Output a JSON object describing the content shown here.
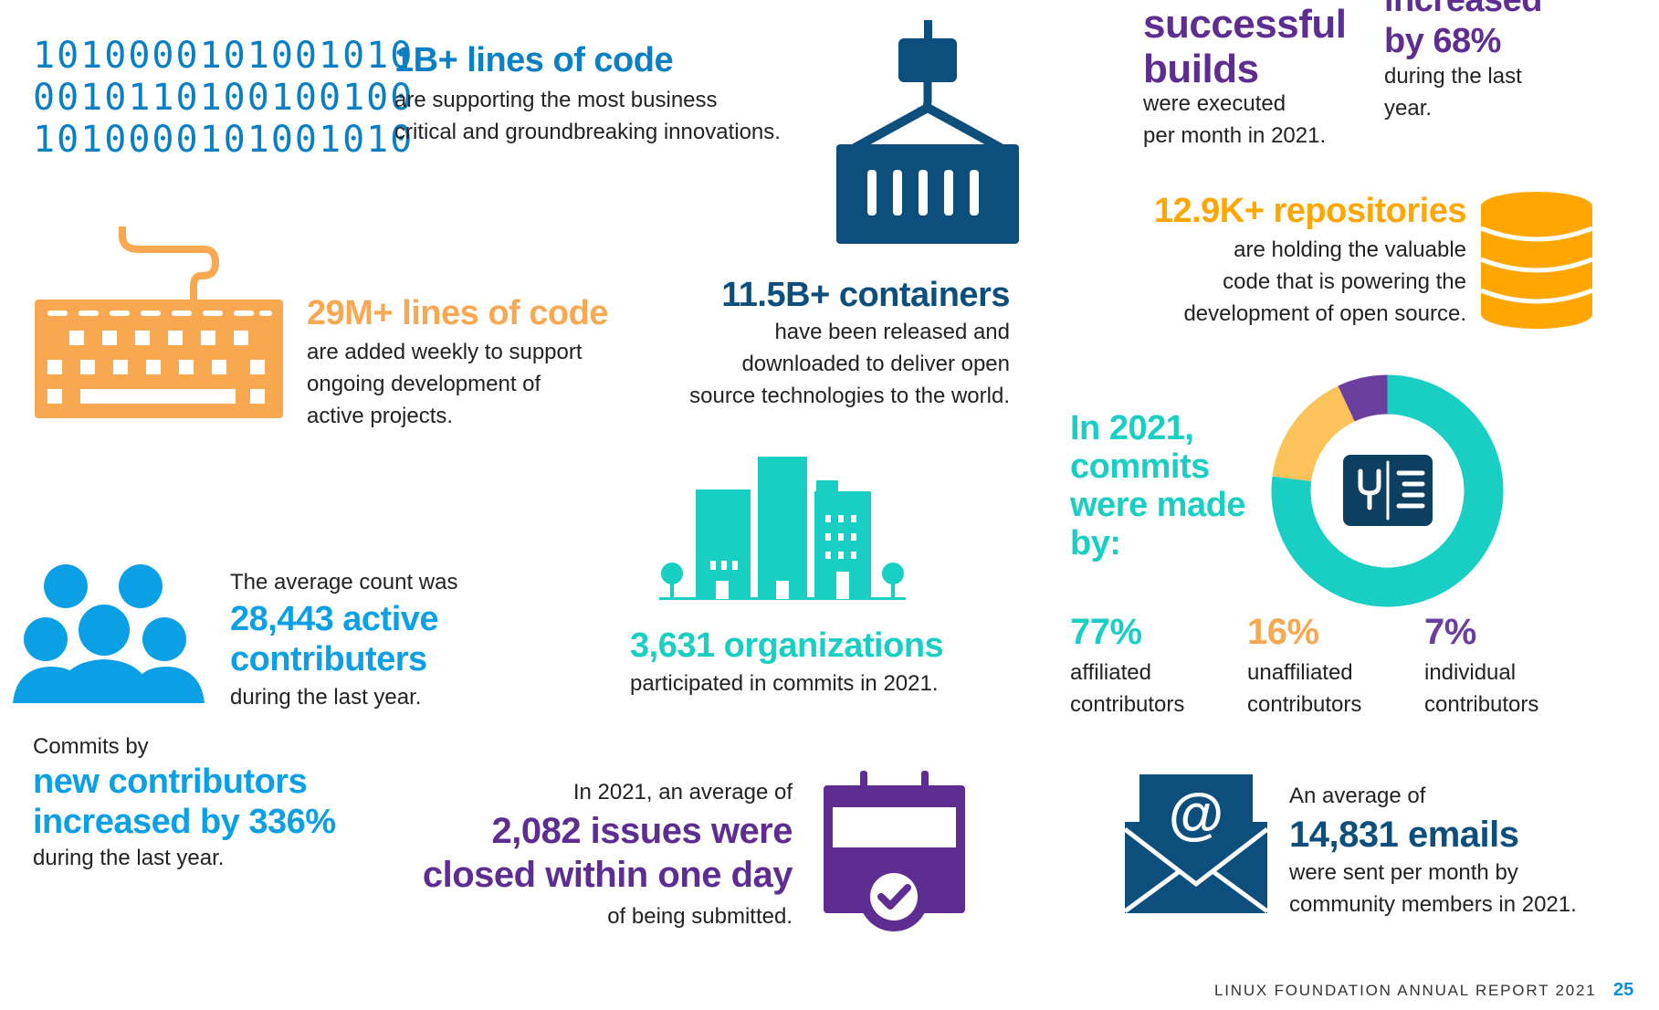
{
  "binary_rows": [
    "1010000101001010",
    "0010110100100100",
    "1010000101001010"
  ],
  "lines_of_code": {
    "headline": "1B+ lines of code",
    "line1": "are supporting the most business",
    "line2": "critical and groundbreaking innovations."
  },
  "weekly_code": {
    "headline": "29M+ lines of code",
    "line1": "are added weekly to support",
    "line2": "ongoing development of",
    "line3": "active projects."
  },
  "containers": {
    "headline": "11.5B+ containers",
    "line1": "have been released and",
    "line2": "downloaded to deliver open",
    "line3": "source technologies to the world."
  },
  "builds": {
    "headline1": "successful",
    "headline2": "builds",
    "line1": "were executed",
    "line2": "per month in 2021."
  },
  "increase": {
    "headline1": "increased",
    "headline2": "by 68%",
    "line1": "during the last",
    "line2": "year."
  },
  "repositories": {
    "headline": "12.9K+ repositories",
    "line1": "are holding the valuable",
    "line2": "code that is powering the",
    "line3": "development of open source."
  },
  "commits_by": {
    "line1": "In 2021,",
    "line2": "commits",
    "line3": "were made",
    "line4": "by:"
  },
  "breakdown": [
    {
      "pct": "77%",
      "line1": "affiliated",
      "line2": "contributors",
      "color": "#19cfc4"
    },
    {
      "pct": "16%",
      "line1": "unaffiliated",
      "line2": "contributors",
      "color": "#f9a852"
    },
    {
      "pct": "7%",
      "line1": "individual",
      "line2": "contributors",
      "color": "#6b3fa0"
    }
  ],
  "chart_data": {
    "type": "pie",
    "categories": [
      "affiliated contributors",
      "unaffiliated contributors",
      "individual contributors"
    ],
    "values": [
      77,
      16,
      7
    ],
    "colors": [
      "#19cfc4",
      "#fcc35a",
      "#6b3fa0"
    ]
  },
  "contributors": {
    "intro": "The average count was",
    "headline1": "28,443 active",
    "headline2": "contributers",
    "outro": "during the last year."
  },
  "organizations": {
    "headline": "3,631 organizations",
    "line1": "participated in commits in 2021."
  },
  "new_contributors": {
    "intro": "Commits by",
    "headline1": "new contributors",
    "headline2": "increased by 336%",
    "outro": "during the last year."
  },
  "issues": {
    "intro": "In 2021, an average of",
    "headline1": "2,082 issues were",
    "headline2": "closed within one day",
    "outro": "of being submitted."
  },
  "emails": {
    "intro": "An average of",
    "headline": "14,831 emails",
    "line1": "were sent per month by",
    "line2": "community members in 2021."
  },
  "footer": {
    "report": "LINUX FOUNDATION ANNUAL REPORT 2021",
    "page": "25"
  },
  "colors": {
    "blue": "#0a7fc4",
    "navy": "#0d4f7c",
    "orange": "#f9a852",
    "gold": "#ffa600",
    "purple": "#5e2d91",
    "teal": "#19cfc4",
    "sky": "#0ba0e6"
  }
}
